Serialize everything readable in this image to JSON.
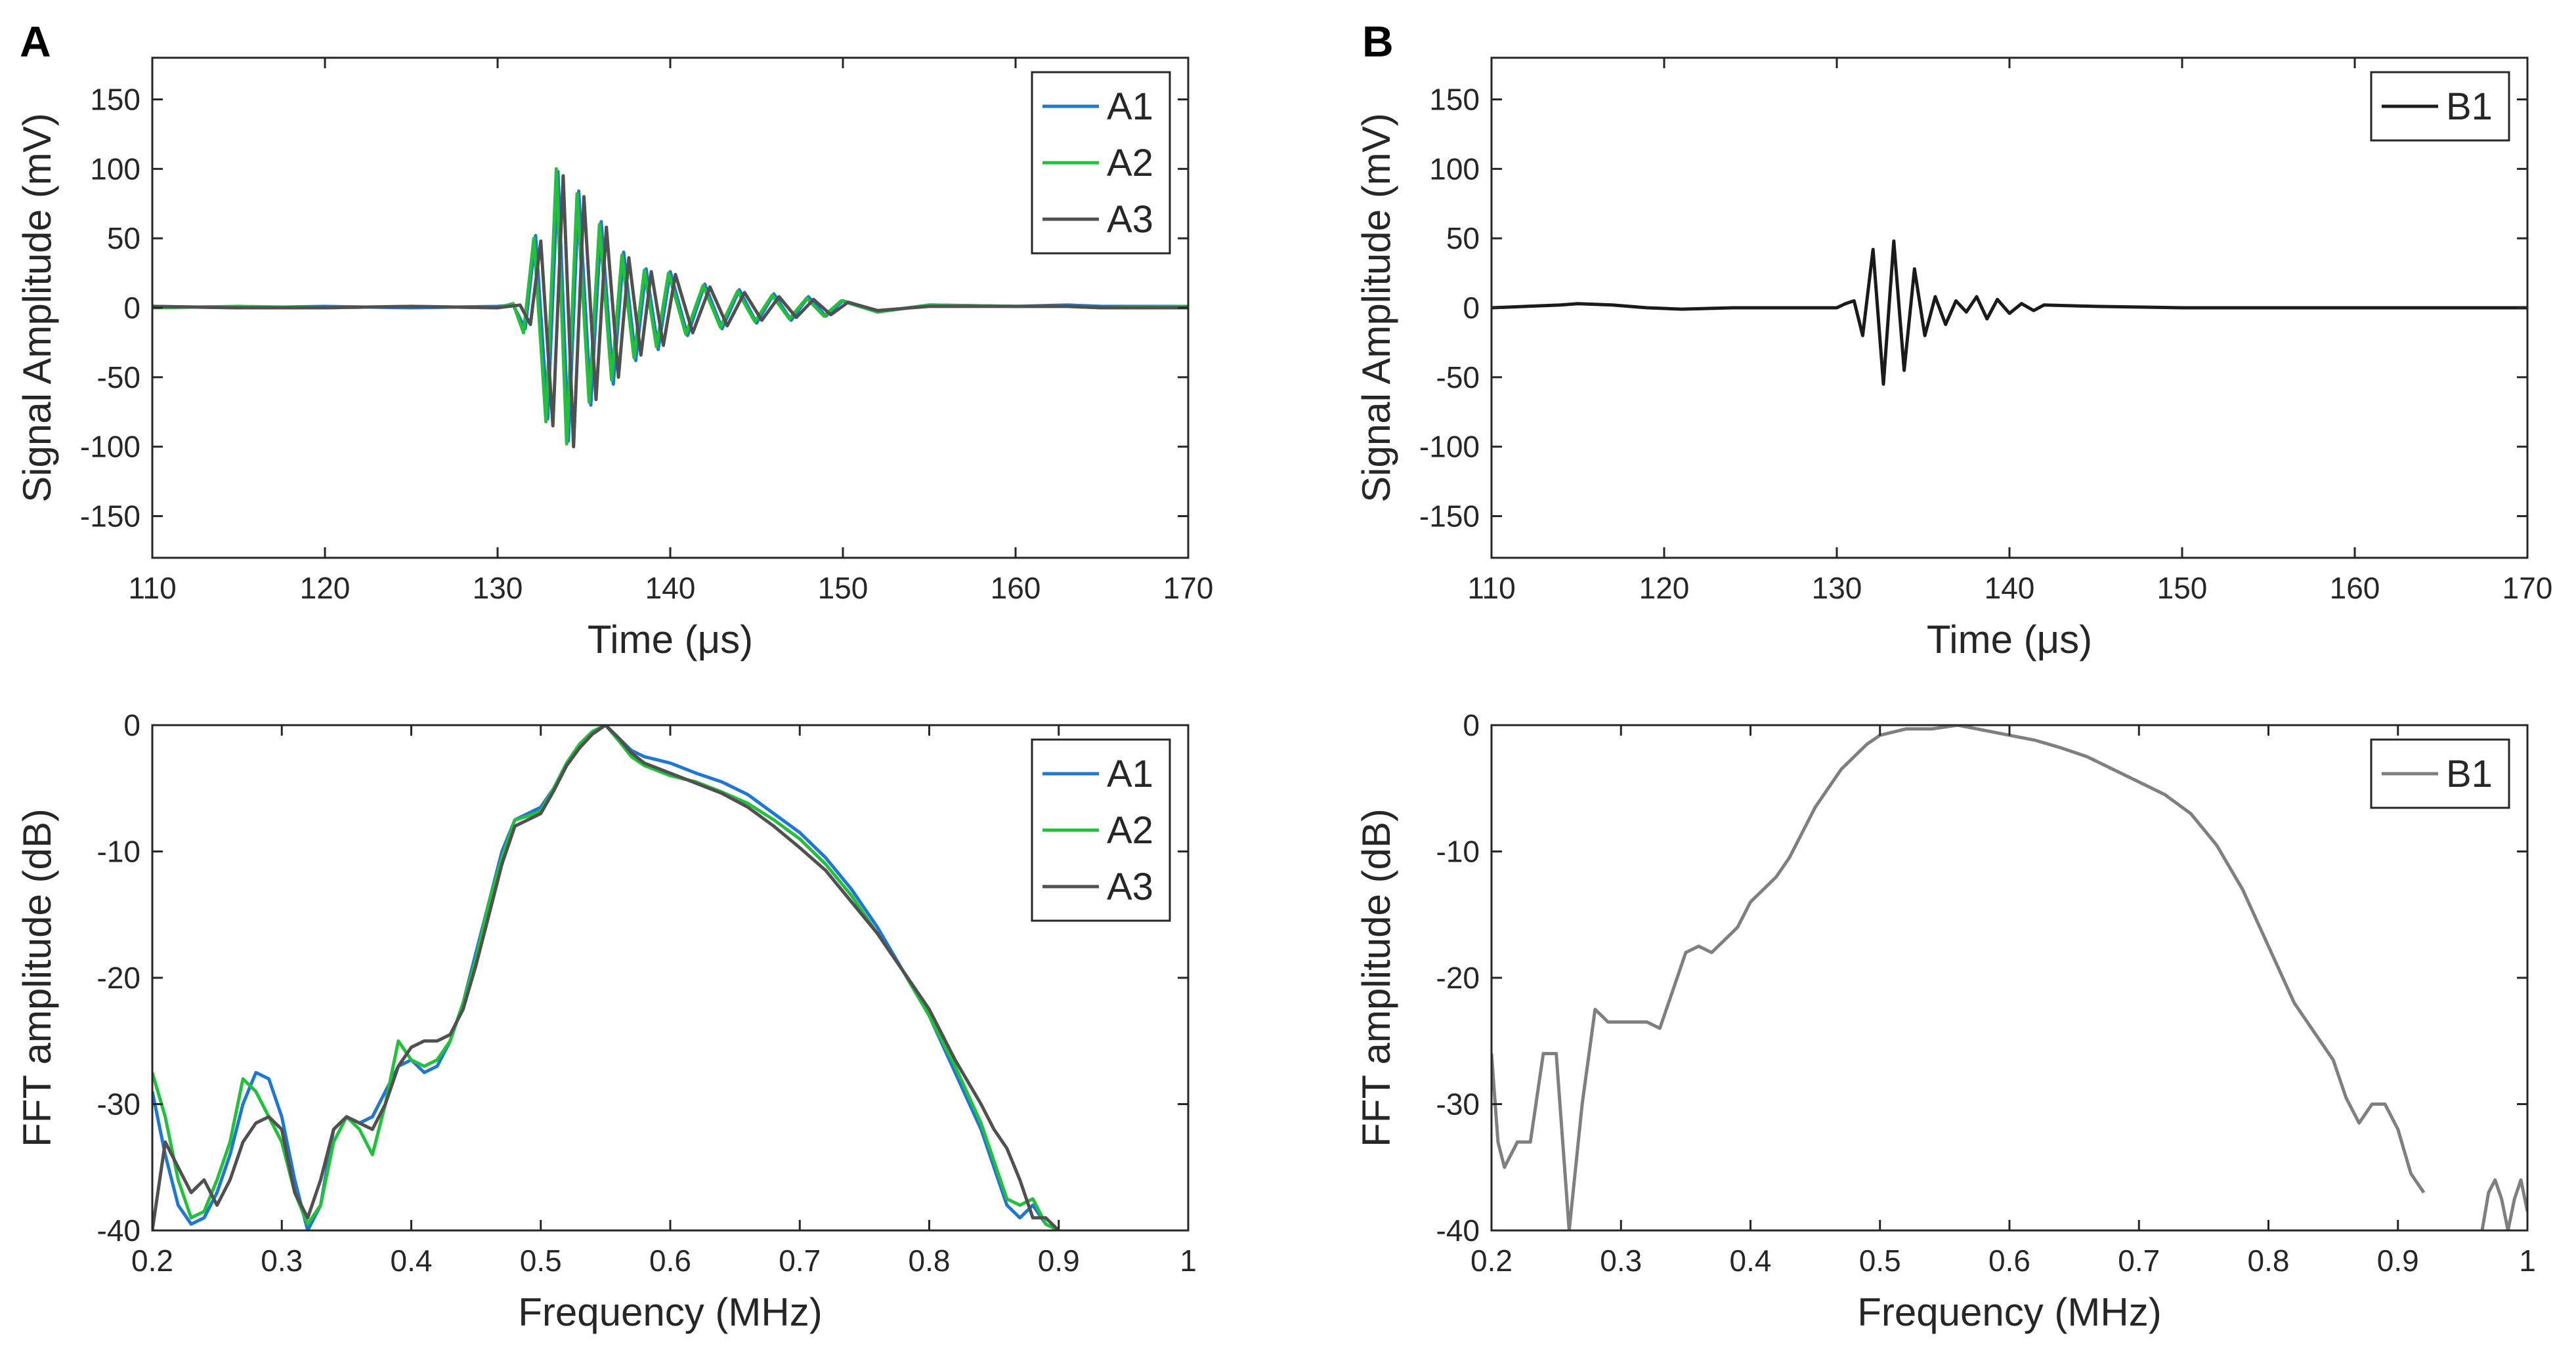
{
  "panels": [
    {
      "letter": "A",
      "title": ""
    },
    {
      "letter": "B",
      "title": ""
    }
  ],
  "chart_data": [
    {
      "panel": "A",
      "type": "line",
      "title": "",
      "xlabel": "Time (μs)",
      "ylabel": "Signal Amplitude (mV)",
      "xlim": [
        110,
        170
      ],
      "ylim": [
        -180,
        180
      ],
      "xticks": [
        110,
        120,
        130,
        140,
        150,
        160,
        170
      ],
      "yticks": [
        -150,
        -100,
        -50,
        0,
        50,
        100,
        150
      ],
      "legend": "top-right",
      "series": [
        {
          "name": "A1",
          "color": "#1f77d4",
          "x": [
            110,
            115,
            120,
            125,
            130,
            130.9,
            131.6,
            132.2,
            132.9,
            133.5,
            134.1,
            134.7,
            135.4,
            136.0,
            136.7,
            137.3,
            138.0,
            138.6,
            139.3,
            140.0,
            141.0,
            142.0,
            143.0,
            144.0,
            145.0,
            146.0,
            147.0,
            148.0,
            149.0,
            150.0,
            152.0,
            155.0,
            160.0,
            163.0,
            165.0,
            170.0
          ],
          "y": [
            1,
            0,
            1,
            0,
            1,
            2,
            -15,
            52,
            -80,
            98,
            -96,
            84,
            -70,
            62,
            -55,
            40,
            -38,
            28,
            -30,
            26,
            -20,
            17,
            -15,
            13,
            -11,
            10,
            -9,
            8,
            -6,
            5,
            -3,
            2,
            1,
            2,
            1,
            1
          ]
        },
        {
          "name": "A2",
          "color": "#22c03c",
          "x": [
            110,
            115,
            120,
            125,
            130,
            130.9,
            131.5,
            132.1,
            132.8,
            133.4,
            134.0,
            134.6,
            135.3,
            135.9,
            136.6,
            137.2,
            137.9,
            138.5,
            139.2,
            139.9,
            140.9,
            141.9,
            142.9,
            143.9,
            144.9,
            145.9,
            146.9,
            147.9,
            148.9,
            149.9,
            152.0,
            155.0,
            160.0,
            163.0,
            165.0,
            170.0
          ],
          "y": [
            0,
            1,
            0,
            1,
            0,
            3,
            -18,
            50,
            -82,
            100,
            -98,
            82,
            -68,
            60,
            -52,
            38,
            -36,
            27,
            -28,
            25,
            -19,
            16,
            -14,
            12,
            -10,
            9,
            -8,
            7,
            -6,
            5,
            -3,
            2,
            1,
            1,
            0,
            1
          ]
        },
        {
          "name": "A3",
          "color": "#505050",
          "x": [
            110,
            115,
            120,
            125,
            130,
            131.3,
            131.9,
            132.5,
            133.2,
            133.8,
            134.4,
            135.0,
            135.7,
            136.3,
            137.0,
            137.6,
            138.3,
            138.9,
            139.6,
            140.3,
            141.3,
            142.3,
            143.3,
            144.3,
            145.3,
            146.3,
            147.3,
            148.3,
            149.3,
            150.3,
            152.0,
            155.0,
            160.0,
            163.0,
            165.0,
            170.0
          ],
          "y": [
            1,
            0,
            0,
            1,
            0,
            2,
            -12,
            48,
            -85,
            95,
            -100,
            80,
            -66,
            58,
            -50,
            36,
            -34,
            26,
            -27,
            24,
            -18,
            15,
            -13,
            11,
            -9,
            8,
            -7,
            6,
            -5,
            4,
            -2,
            1,
            1,
            1,
            0,
            0
          ]
        }
      ]
    },
    {
      "panel": "B",
      "type": "line",
      "title": "",
      "xlabel": "Time (μs)",
      "ylabel": "Signal Amplitude (mV)",
      "xlim": [
        110,
        170
      ],
      "ylim": [
        -180,
        180
      ],
      "xticks": [
        110,
        120,
        130,
        140,
        150,
        160,
        170
      ],
      "yticks": [
        -150,
        -100,
        -50,
        0,
        50,
        100,
        150
      ],
      "legend": "top-right",
      "series": [
        {
          "name": "B1",
          "color": "#1a1a1a",
          "x": [
            110,
            112,
            114,
            115,
            117,
            119,
            121,
            124,
            127,
            130,
            130.5,
            131.0,
            131.5,
            132.1,
            132.7,
            133.3,
            133.9,
            134.5,
            135.1,
            135.7,
            136.3,
            136.9,
            137.5,
            138.1,
            138.7,
            139.3,
            140.0,
            140.7,
            141.4,
            142.0,
            145.0,
            150.0,
            155.0,
            160.0,
            165.0,
            170.0
          ],
          "y": [
            0,
            1,
            2,
            3,
            2,
            0,
            -1,
            0,
            0,
            0,
            3,
            5,
            -20,
            42,
            -55,
            48,
            -45,
            28,
            -20,
            8,
            -12,
            5,
            -3,
            8,
            -8,
            6,
            -4,
            3,
            -2,
            2,
            1,
            0,
            0,
            0,
            0,
            0
          ]
        }
      ]
    },
    {
      "panel": "A",
      "type": "line",
      "title": "",
      "xlabel": "Frequency (MHz)",
      "ylabel": "FFT amplitude (dB)",
      "xlim": [
        0.2,
        1
      ],
      "ylim": [
        -40,
        0
      ],
      "xticks": [
        0.2,
        0.3,
        0.4,
        0.5,
        0.6,
        0.7,
        0.8,
        0.9,
        1
      ],
      "yticks": [
        -40,
        -30,
        -20,
        -10,
        0
      ],
      "legend": "top-right",
      "series": [
        {
          "name": "A1",
          "color": "#1f77d4",
          "x": [
            0.2,
            0.21,
            0.22,
            0.23,
            0.24,
            0.25,
            0.26,
            0.27,
            0.28,
            0.29,
            0.3,
            0.31,
            0.32,
            0.33,
            0.34,
            0.35,
            0.36,
            0.37,
            0.38,
            0.39,
            0.4,
            0.41,
            0.42,
            0.43,
            0.44,
            0.45,
            0.46,
            0.47,
            0.48,
            0.49,
            0.5,
            0.51,
            0.52,
            0.53,
            0.54,
            0.55,
            0.56,
            0.57,
            0.58,
            0.6,
            0.62,
            0.64,
            0.66,
            0.68,
            0.7,
            0.72,
            0.74,
            0.76,
            0.78,
            0.8,
            0.82,
            0.84,
            0.85,
            0.86,
            0.87,
            0.88,
            0.89,
            0.9
          ],
          "y": [
            -29,
            -34,
            -38,
            -39.5,
            -39,
            -37,
            -34,
            -30,
            -27.5,
            -28,
            -31,
            -36,
            -40,
            -38,
            -32,
            -31,
            -31.5,
            -31,
            -29,
            -27,
            -26.5,
            -27.5,
            -27,
            -25,
            -22,
            -18,
            -14,
            -10,
            -7.5,
            -7,
            -6.5,
            -5,
            -3,
            -1.5,
            -0.5,
            0,
            -1,
            -2,
            -2.5,
            -3,
            -3.8,
            -4.5,
            -5.5,
            -7,
            -8.5,
            -10.5,
            -13,
            -16,
            -19.5,
            -23,
            -27.5,
            -32,
            -35,
            -38,
            -39,
            -38,
            -39.5,
            -40
          ]
        },
        {
          "name": "A2",
          "color": "#22c03c",
          "x": [
            0.2,
            0.21,
            0.22,
            0.23,
            0.24,
            0.25,
            0.26,
            0.27,
            0.28,
            0.29,
            0.3,
            0.31,
            0.32,
            0.33,
            0.34,
            0.35,
            0.36,
            0.37,
            0.38,
            0.39,
            0.4,
            0.41,
            0.42,
            0.43,
            0.44,
            0.45,
            0.46,
            0.47,
            0.48,
            0.49,
            0.5,
            0.51,
            0.52,
            0.53,
            0.54,
            0.55,
            0.56,
            0.57,
            0.58,
            0.6,
            0.62,
            0.64,
            0.66,
            0.68,
            0.7,
            0.72,
            0.74,
            0.76,
            0.78,
            0.8,
            0.82,
            0.84,
            0.85,
            0.86,
            0.87,
            0.88,
            0.89,
            0.9
          ],
          "y": [
            -27.5,
            -31,
            -36,
            -39,
            -38.5,
            -36,
            -33,
            -28,
            -29,
            -31,
            -33,
            -37,
            -39.5,
            -38,
            -33,
            -31,
            -32,
            -34,
            -30,
            -25,
            -26.5,
            -27,
            -26.5,
            -25,
            -22,
            -18.5,
            -14,
            -10.5,
            -7.5,
            -7.2,
            -6.8,
            -5,
            -3,
            -1.5,
            -0.5,
            0,
            -1.2,
            -2.5,
            -3.2,
            -4,
            -4.5,
            -5.3,
            -6.2,
            -7.5,
            -9,
            -11,
            -13.5,
            -16.5,
            -19.5,
            -23,
            -27,
            -31.5,
            -34.5,
            -37.5,
            -38,
            -37.5,
            -39.5,
            -40
          ]
        },
        {
          "name": "A3",
          "color": "#505050",
          "x": [
            0.2,
            0.21,
            0.22,
            0.23,
            0.24,
            0.25,
            0.26,
            0.27,
            0.28,
            0.29,
            0.3,
            0.31,
            0.32,
            0.33,
            0.34,
            0.35,
            0.36,
            0.37,
            0.38,
            0.39,
            0.4,
            0.41,
            0.42,
            0.43,
            0.44,
            0.45,
            0.46,
            0.47,
            0.48,
            0.49,
            0.5,
            0.51,
            0.52,
            0.53,
            0.54,
            0.55,
            0.56,
            0.57,
            0.58,
            0.6,
            0.62,
            0.64,
            0.66,
            0.68,
            0.7,
            0.72,
            0.74,
            0.76,
            0.78,
            0.8,
            0.82,
            0.84,
            0.85,
            0.86,
            0.87,
            0.88,
            0.89,
            0.9
          ],
          "y": [
            -40,
            -33,
            -35,
            -37,
            -36,
            -38,
            -36,
            -33,
            -31.5,
            -31,
            -32,
            -37,
            -39,
            -36,
            -32,
            -31,
            -31.5,
            -32,
            -30,
            -27,
            -25.5,
            -25,
            -25,
            -24.5,
            -22.5,
            -19,
            -15,
            -11,
            -8,
            -7.5,
            -7,
            -5.2,
            -3.2,
            -1.8,
            -0.7,
            0,
            -1,
            -2.2,
            -3,
            -3.8,
            -4.6,
            -5.4,
            -6.5,
            -8,
            -9.7,
            -11.5,
            -14,
            -16.5,
            -19.5,
            -22.5,
            -26.5,
            -30,
            -32,
            -33.5,
            -36,
            -39,
            -39,
            -40
          ]
        }
      ]
    },
    {
      "panel": "B",
      "type": "line",
      "title": "",
      "xlabel": "Frequency (MHz)",
      "ylabel": "FFT amplitude (dB)",
      "xlim": [
        0.2,
        1
      ],
      "ylim": [
        -40,
        0
      ],
      "xticks": [
        0.2,
        0.3,
        0.4,
        0.5,
        0.6,
        0.7,
        0.8,
        0.9,
        1
      ],
      "yticks": [
        -40,
        -30,
        -20,
        -10,
        0
      ],
      "legend": "top-right",
      "series": [
        {
          "name": "B1",
          "color": "#7f7f7f",
          "x": [
            0.2,
            0.205,
            0.21,
            0.22,
            0.23,
            0.24,
            0.25,
            0.255,
            0.26,
            0.27,
            0.28,
            0.29,
            0.3,
            0.31,
            0.32,
            0.33,
            0.34,
            0.35,
            0.36,
            0.37,
            0.38,
            0.39,
            0.4,
            0.41,
            0.42,
            0.43,
            0.44,
            0.45,
            0.46,
            0.47,
            0.48,
            0.49,
            0.5,
            0.52,
            0.54,
            0.56,
            0.58,
            0.6,
            0.62,
            0.64,
            0.66,
            0.68,
            0.7,
            0.72,
            0.74,
            0.76,
            0.78,
            0.8,
            0.82,
            0.84,
            0.85,
            0.86,
            0.87,
            0.88,
            0.89,
            0.9,
            0.91,
            0.92
          ],
          "y": [
            -26,
            -33,
            -35,
            -33,
            -33,
            -26,
            -26,
            -33,
            -40,
            -30,
            -22.5,
            -23.5,
            -23.5,
            -23.5,
            -23.5,
            -24,
            -21,
            -18,
            -17.5,
            -18,
            -17,
            -16,
            -14,
            -13,
            -12,
            -10.5,
            -8.5,
            -6.5,
            -5,
            -3.5,
            -2.5,
            -1.5,
            -0.8,
            -0.3,
            -0.3,
            0,
            -0.4,
            -0.8,
            -1.2,
            -1.8,
            -2.5,
            -3.5,
            -4.5,
            -5.5,
            -7,
            -9.5,
            -13,
            -17.5,
            -22,
            -25,
            -26.5,
            -29.5,
            -31.5,
            -30,
            -30,
            -32,
            -35.5,
            -37
          ]
        },
        {
          "name": "",
          "color": "#7f7f7f",
          "x": [
            0.965,
            0.97,
            0.975,
            0.98,
            0.985,
            0.99,
            0.995,
            1.0
          ],
          "y": [
            -40,
            -37,
            -36,
            -37.5,
            -40,
            -37.5,
            -36,
            -38.5
          ]
        }
      ]
    }
  ]
}
